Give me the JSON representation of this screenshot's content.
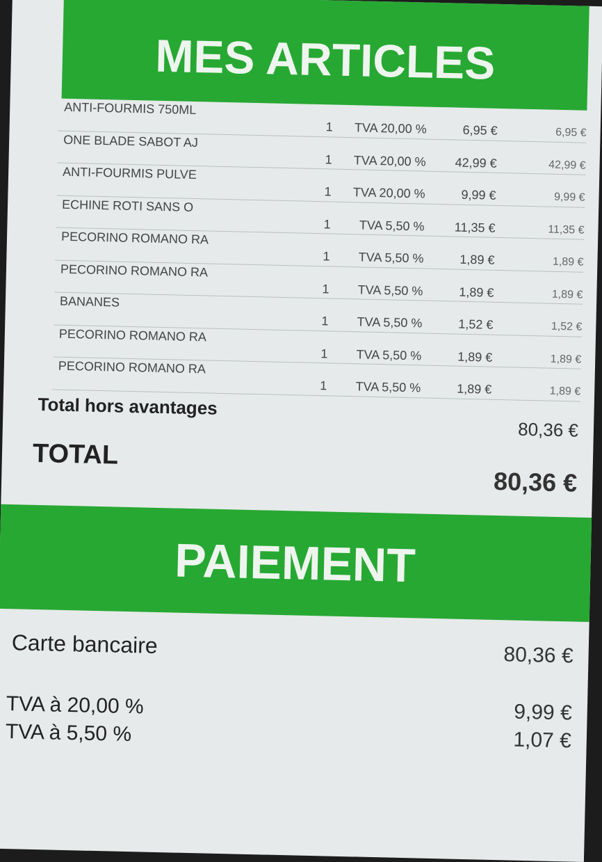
{
  "articles": {
    "title": "MES ARTICLES",
    "items": [
      {
        "name": "ANTI-FOURMIS 750ML",
        "qty": "1",
        "tva": "TVA 20,00 %",
        "unit_price": "6,95 €",
        "total": "6,95 €"
      },
      {
        "name": "ONE BLADE SABOT AJ",
        "qty": "1",
        "tva": "TVA 20,00 %",
        "unit_price": "42,99 €",
        "total": "42,99 €"
      },
      {
        "name": "ANTI-FOURMIS PULVE",
        "qty": "1",
        "tva": "TVA 20,00 %",
        "unit_price": "9,99 €",
        "total": "9,99 €"
      },
      {
        "name": "ECHINE ROTI SANS O",
        "qty": "1",
        "tva": "TVA 5,50 %",
        "unit_price": "11,35 €",
        "total": "11,35 €"
      },
      {
        "name": "PECORINO ROMANO RA",
        "qty": "1",
        "tva": "TVA 5,50 %",
        "unit_price": "1,89 €",
        "total": "1,89 €"
      },
      {
        "name": "PECORINO ROMANO RA",
        "qty": "1",
        "tva": "TVA 5,50 %",
        "unit_price": "1,89 €",
        "total": "1,89 €"
      },
      {
        "name": "BANANES",
        "qty": "1",
        "tva": "TVA 5,50 %",
        "unit_price": "1,52 €",
        "total": "1,52 €"
      },
      {
        "name": "PECORINO ROMANO RA",
        "qty": "1",
        "tva": "TVA 5,50 %",
        "unit_price": "1,89 €",
        "total": "1,89 €"
      },
      {
        "name": "PECORINO ROMANO RA",
        "qty": "1",
        "tva": "TVA 5,50 %",
        "unit_price": "1,89 €",
        "total": "1,89 €"
      }
    ],
    "subtotal_label": "Total hors avantages",
    "subtotal_value": "80,36 €",
    "total_label": "TOTAL",
    "total_value": "80,36 €"
  },
  "payment": {
    "title": "PAIEMENT",
    "method_label": "Carte bancaire",
    "method_value": "80,36 €",
    "vat": [
      {
        "label": "TVA à 20,00 %",
        "value": "9,99 €"
      },
      {
        "label": "TVA à 5,50 %",
        "value": "1,07 €"
      }
    ]
  },
  "colors": {
    "accent": "#27a833"
  }
}
